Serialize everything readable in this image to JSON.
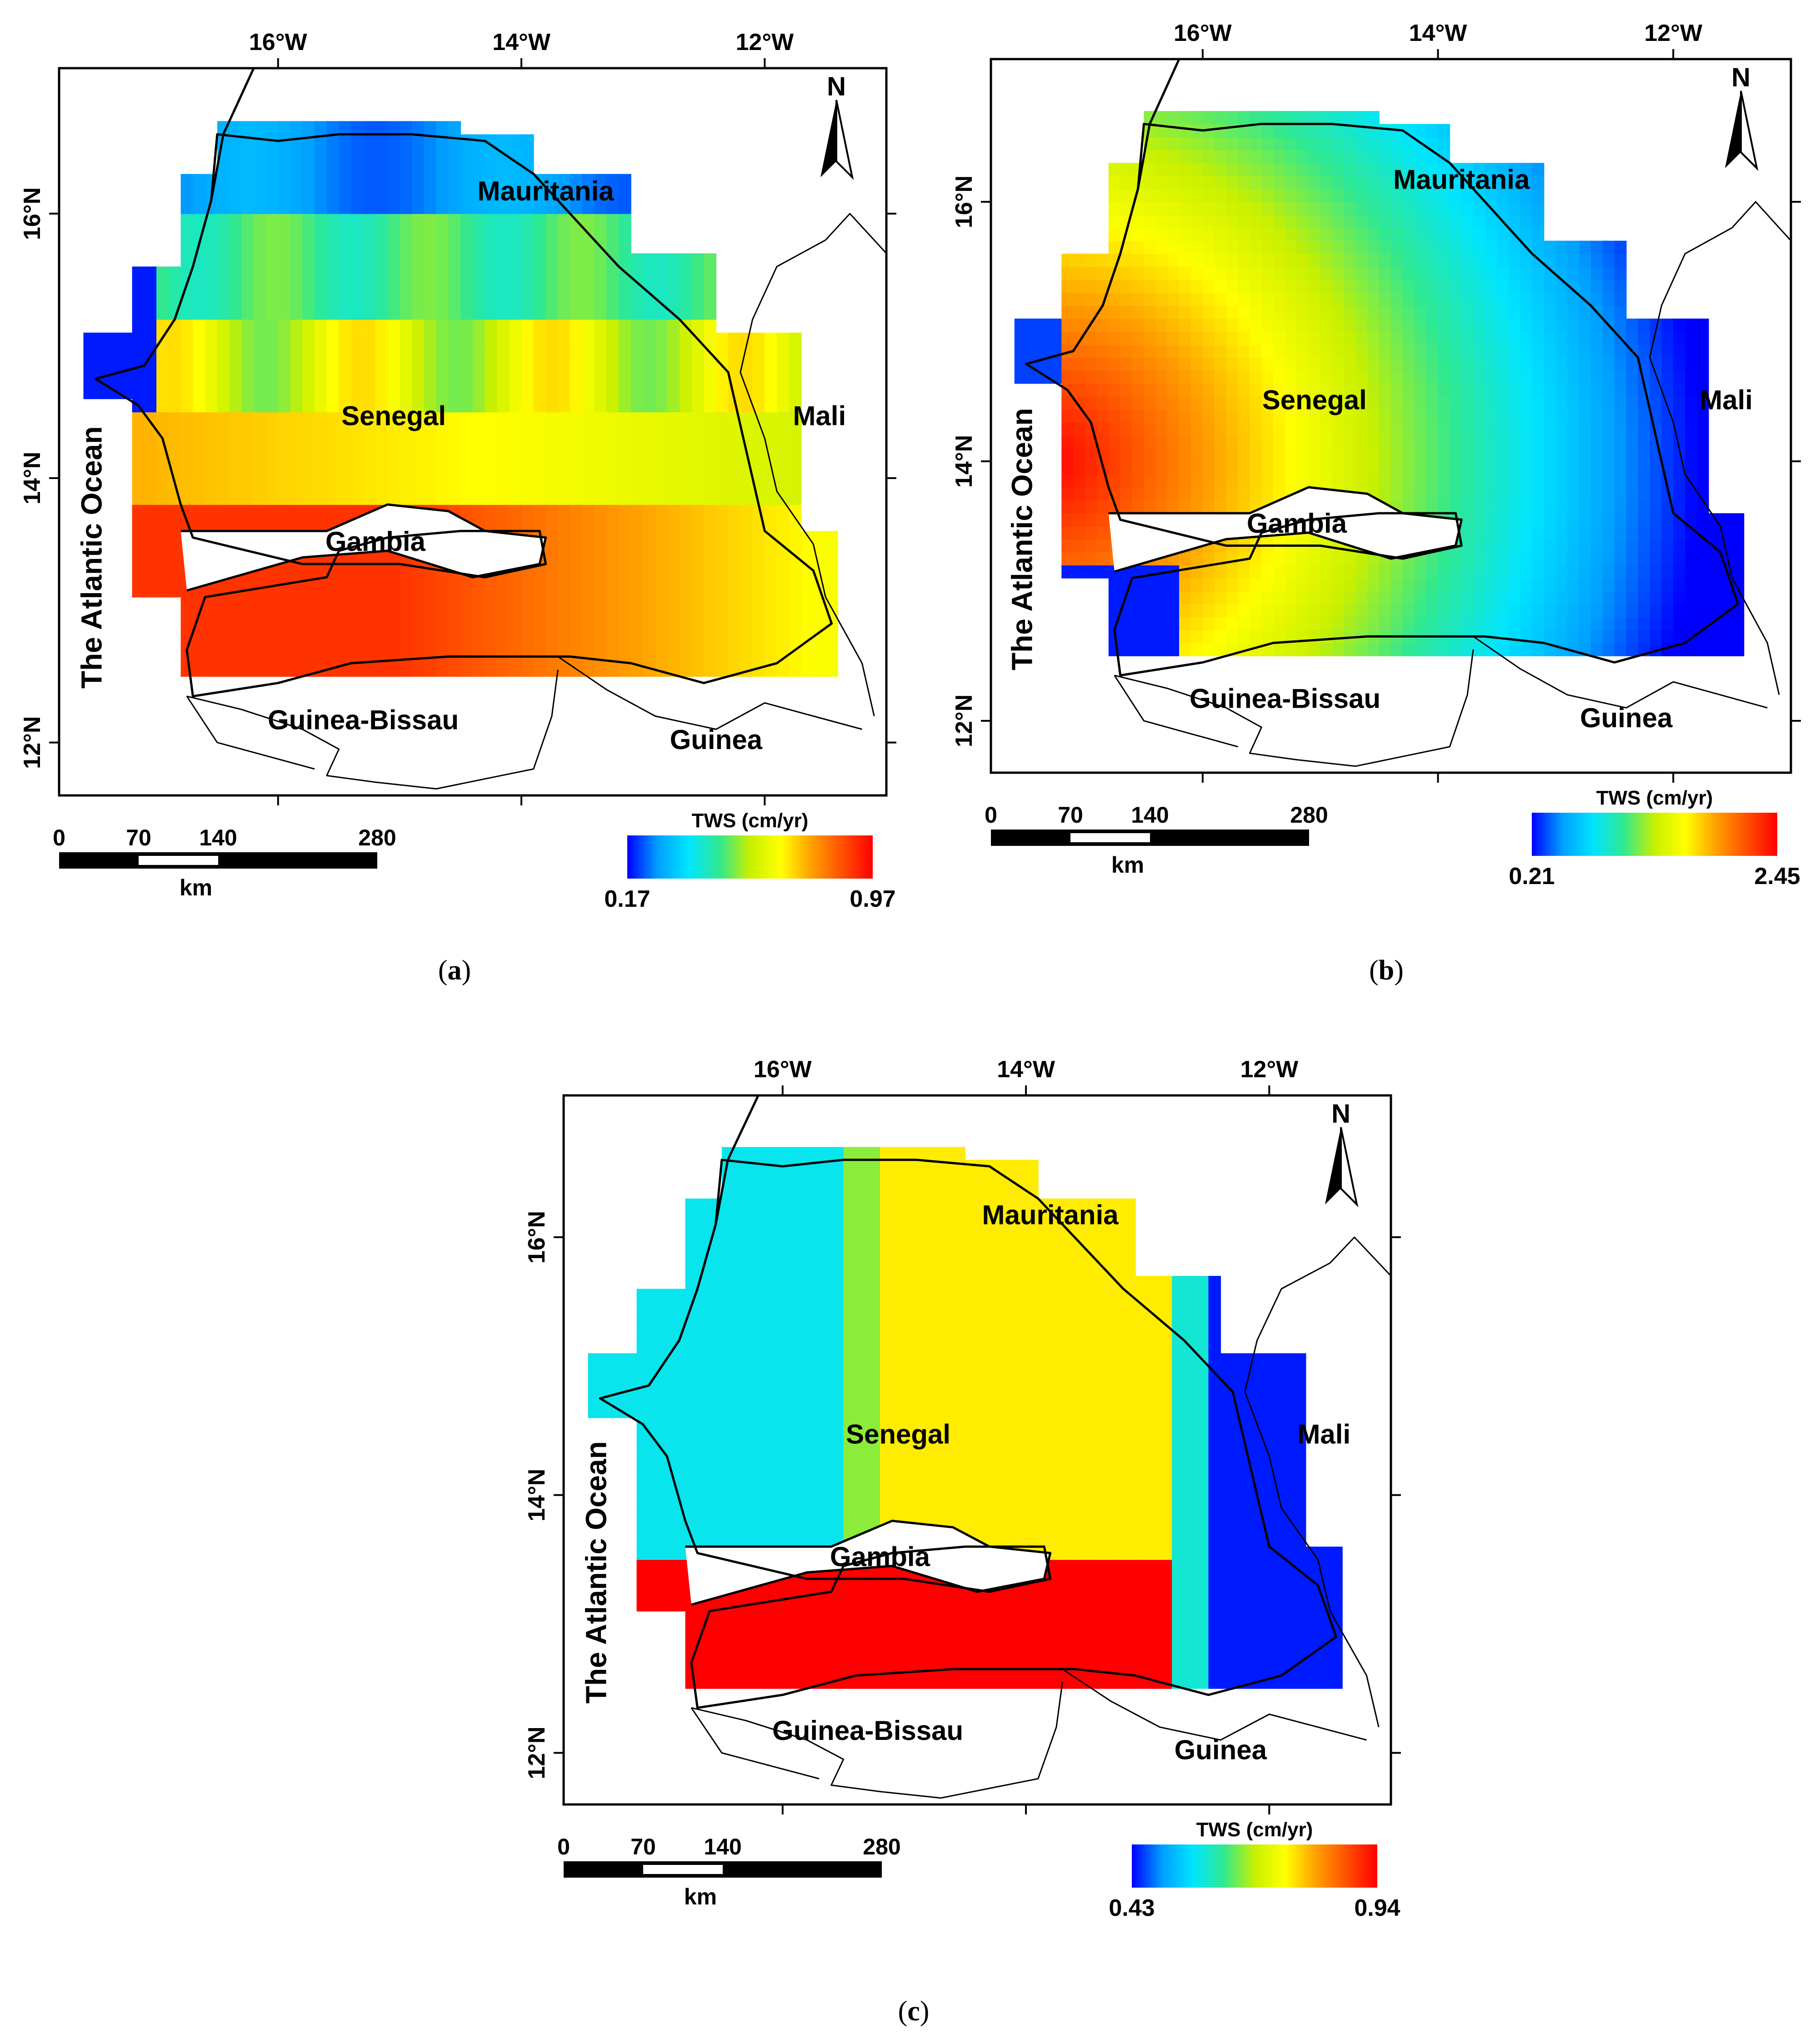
{
  "panels": [
    {
      "id": "a",
      "caption_letter": "a",
      "lon_ticks": [
        "16°W",
        "14°W",
        "12°W"
      ],
      "lat_ticks": [
        "16°N",
        "14°N",
        "12°N"
      ],
      "countries": {
        "mauritania": "Mauritania",
        "mali": "Mali",
        "senegal": "Senegal",
        "gambia": "Gambia",
        "guinea_bissau": "Guinea-Bissau",
        "guinea": "Guinea",
        "ocean": "The Atlantic Ocean"
      },
      "north": "N",
      "scale": {
        "ticks": [
          "0",
          "70",
          "140",
          "280"
        ],
        "unit": "km"
      },
      "legend": {
        "title": "TWS (cm/yr)",
        "min": "0.17",
        "max": "0.97"
      },
      "pattern": "latitudinal"
    },
    {
      "id": "b",
      "caption_letter": "b",
      "lon_ticks": [
        "16°W",
        "14°W",
        "12°W"
      ],
      "lat_ticks": [
        "16°N",
        "14°N",
        "12°N"
      ],
      "countries": {
        "mauritania": "Mauritania",
        "mali": "Mali",
        "senegal": "Senegal",
        "gambia": "Gambia",
        "guinea_bissau": "Guinea-Bissau",
        "guinea": "Guinea",
        "ocean": "The Atlantic Ocean"
      },
      "north": "N",
      "scale": {
        "ticks": [
          "0",
          "70",
          "140",
          "280"
        ],
        "unit": "km"
      },
      "legend": {
        "title": "TWS (cm/yr)",
        "min": "0.21",
        "max": "2.45"
      },
      "pattern": "radial-west"
    },
    {
      "id": "c",
      "caption_letter": "c",
      "lon_ticks": [
        "16°W",
        "14°W",
        "12°W"
      ],
      "lat_ticks": [
        "16°N",
        "14°N",
        "12°N"
      ],
      "countries": {
        "mauritania": "Mauritania",
        "mali": "Mali",
        "senegal": "Senegal",
        "gambia": "Gambia",
        "guinea_bissau": "Guinea-Bissau",
        "guinea": "Guinea",
        "ocean": "The Atlantic Ocean"
      },
      "north": "N",
      "scale": {
        "ticks": [
          "0",
          "70",
          "140",
          "280"
        ],
        "unit": "km"
      },
      "legend": {
        "title": "TWS (cm/yr)",
        "min": "0.43",
        "max": "0.94"
      },
      "pattern": "zonal-blocks"
    }
  ],
  "colors": {
    "ramp": [
      "#0000ff",
      "#00a0ff",
      "#00e5ff",
      "#30e890",
      "#c8f000",
      "#ffff00",
      "#ffa000",
      "#ff5000",
      "#ff0000"
    ],
    "outline": "#000000",
    "background": "#ffffff"
  }
}
